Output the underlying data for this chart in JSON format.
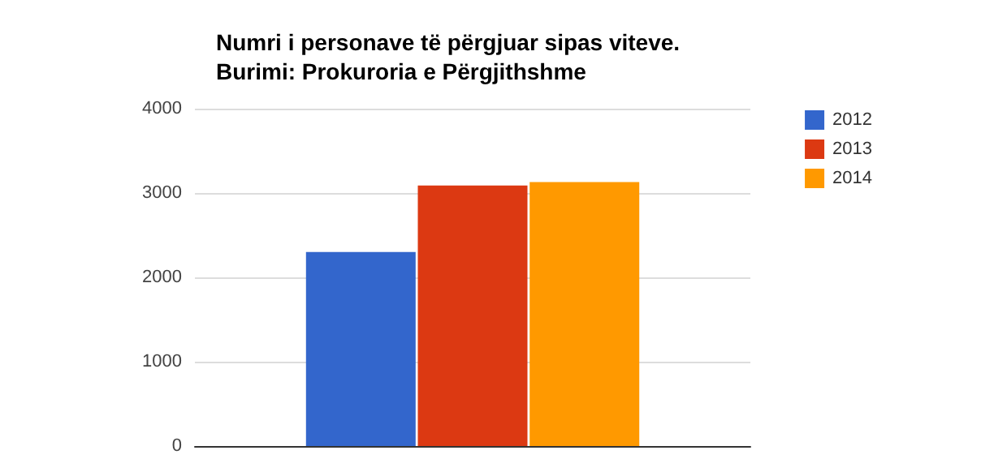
{
  "chart_data": {
    "type": "bar",
    "title": "Numri i personave të përgjuar sipas viteve.",
    "subtitle": "Burimi: Prokuroria e Përgjithshme",
    "categories": [
      null
    ],
    "series": [
      {
        "name": "2012",
        "color": "#3366cc",
        "values": [
          2300
        ]
      },
      {
        "name": "2013",
        "color": "#dc3912",
        "values": [
          3090
        ]
      },
      {
        "name": "2014",
        "color": "#ff9900",
        "values": [
          3130
        ]
      }
    ],
    "ylim": [
      0,
      4000
    ],
    "yticks": [
      0,
      1000,
      2000,
      3000,
      4000
    ],
    "grid": "y",
    "legend": "top right"
  }
}
